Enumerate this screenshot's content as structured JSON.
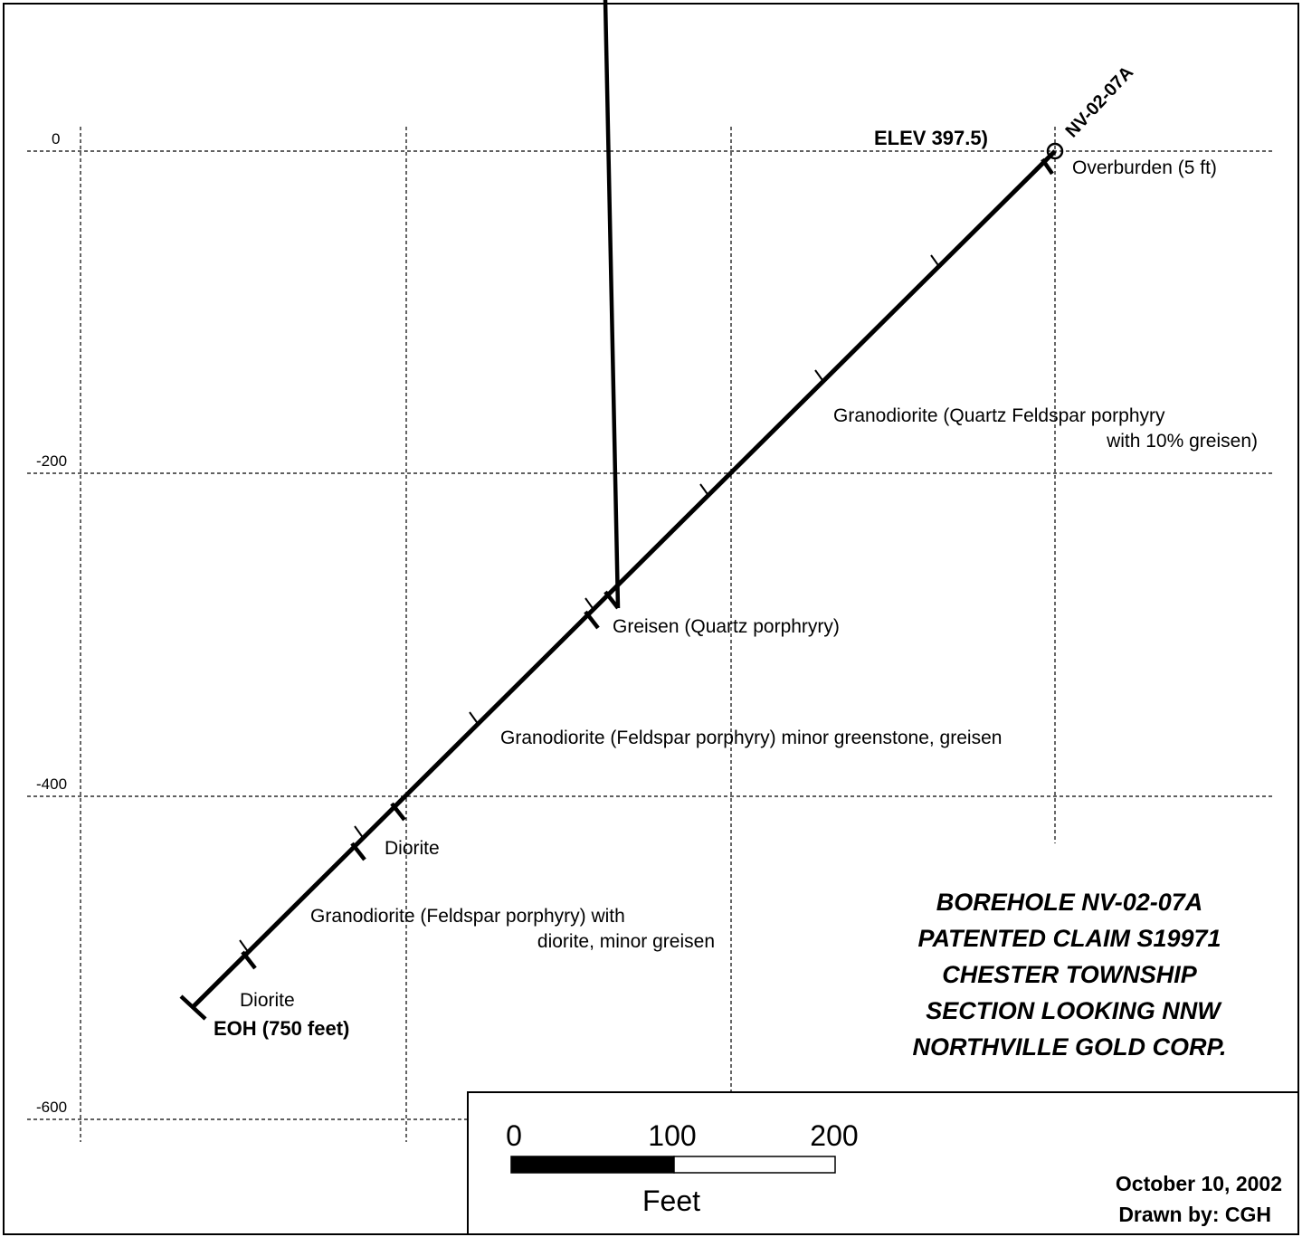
{
  "chart_data": {
    "type": "borehole-section",
    "y_ticks": [
      "0",
      "-200",
      "-400",
      "-600"
    ],
    "collar": {
      "hole_id": "NV-02-07A",
      "elevation_label": "ELEV 397.5)"
    },
    "units": [
      {
        "text": "Overburden (5 ft)"
      },
      {
        "text_lines": [
          "Granodiorite (Quartz Feldspar porphyry",
          "with 10% greisen)"
        ]
      },
      {
        "text": "Greisen (Quartz porphryry)"
      },
      {
        "text": "Granodiorite (Feldspar porphyry) minor greenstone, greisen"
      },
      {
        "text": "Diorite"
      },
      {
        "text_lines": [
          "Granodiorite (Feldspar porphyry) with",
          "diorite, minor greisen"
        ]
      },
      {
        "text": "Diorite"
      }
    ],
    "end_of_hole_label": "EOH (750 feet)"
  },
  "title_block": {
    "lines": [
      "BOREHOLE NV-02-07A",
      "PATENTED CLAIM S19971",
      "CHESTER TOWNSHIP",
      "SECTION LOOKING NNW",
      "NORTHVILLE GOLD CORP."
    ]
  },
  "scale_bar": {
    "labels": [
      "0",
      "100",
      "200"
    ],
    "units": "Feet"
  },
  "credits": {
    "date": "October 10,  2002",
    "drawn_by": "Drawn by: CGH"
  }
}
